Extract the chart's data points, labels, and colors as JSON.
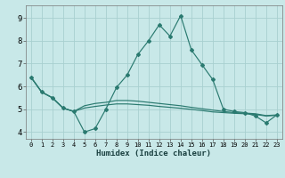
{
  "xlabel": "Humidex (Indice chaleur)",
  "bg_color": "#c8e8e8",
  "grid_color": "#a8d0d0",
  "line_color": "#2a7a70",
  "xlim": [
    -0.5,
    23.5
  ],
  "ylim": [
    3.7,
    9.55
  ],
  "xticks": [
    0,
    1,
    2,
    3,
    4,
    5,
    6,
    7,
    8,
    9,
    10,
    11,
    12,
    13,
    14,
    15,
    16,
    17,
    18,
    19,
    20,
    21,
    22,
    23
  ],
  "yticks": [
    4,
    5,
    6,
    7,
    8,
    9
  ],
  "line1_x": [
    0,
    1,
    2,
    3,
    4,
    5,
    6,
    7,
    8,
    9,
    10,
    11,
    12,
    13,
    14,
    15,
    16,
    17,
    18,
    19,
    20,
    21,
    22,
    23
  ],
  "line1_y": [
    6.4,
    5.75,
    5.5,
    5.05,
    4.9,
    4.0,
    4.15,
    5.0,
    5.95,
    6.5,
    7.4,
    8.0,
    8.7,
    8.2,
    9.1,
    7.6,
    6.95,
    6.3,
    5.0,
    4.9,
    4.85,
    4.7,
    4.4,
    4.75
  ],
  "line2_x": [
    0,
    1,
    2,
    3,
    4,
    5,
    6,
    7,
    8,
    9,
    10,
    11,
    12,
    13,
    14,
    15,
    16,
    17,
    18,
    19,
    20,
    21,
    22,
    23
  ],
  "line2_y": [
    6.4,
    5.75,
    5.5,
    5.05,
    4.9,
    5.15,
    5.25,
    5.3,
    5.38,
    5.38,
    5.35,
    5.3,
    5.25,
    5.2,
    5.15,
    5.08,
    5.02,
    4.96,
    4.9,
    4.85,
    4.83,
    4.8,
    4.72,
    4.75
  ],
  "line3_x": [
    0,
    1,
    2,
    3,
    4,
    5,
    6,
    7,
    8,
    9,
    10,
    11,
    12,
    13,
    14,
    15,
    16,
    17,
    18,
    19,
    20,
    21,
    22,
    23
  ],
  "line3_y": [
    6.4,
    5.75,
    5.5,
    5.05,
    4.9,
    5.05,
    5.12,
    5.18,
    5.23,
    5.23,
    5.2,
    5.17,
    5.12,
    5.08,
    5.04,
    4.99,
    4.94,
    4.88,
    4.85,
    4.82,
    4.8,
    4.77,
    4.7,
    4.73
  ]
}
